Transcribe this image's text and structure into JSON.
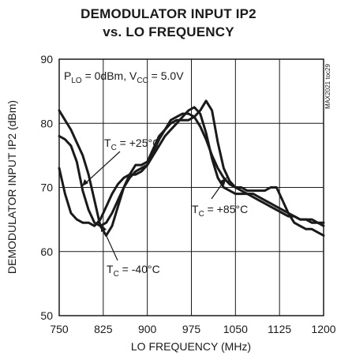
{
  "chart_data": {
    "type": "line",
    "title_line1": "DEMODULATOR INPUT IP2",
    "title_line2": "vs. LO FREQUENCY",
    "xlabel": "LO FREQUENCY (MHz)",
    "ylabel": "DEMODULATOR INPUT IP2 (dBm)",
    "xlim": [
      750,
      1200
    ],
    "ylim": [
      50,
      90
    ],
    "x_ticks": [
      "750",
      "825",
      "900",
      "975",
      "1050",
      "1125",
      "1200"
    ],
    "y_ticks": [
      "50",
      "60",
      "70",
      "80",
      "90"
    ],
    "grid": true,
    "conditions": {
      "P": "P",
      "P_sub": "LO",
      "P_val": " = 0dBm, V",
      "V_sub": "CC",
      "V_val": " = 5.0V"
    },
    "side_note": "MAX2021 toc29",
    "annotations": [
      {
        "base": "T",
        "sub": "C",
        "value": " = +25°C"
      },
      {
        "base": "T",
        "sub": "C",
        "value": " = -40°C"
      },
      {
        "base": "T",
        "sub": "C",
        "value": " = +85°C"
      }
    ],
    "series": [
      {
        "key": "t25",
        "x": [
          750,
          760,
          770,
          780,
          790,
          800,
          810,
          820,
          830,
          840,
          850,
          860,
          870,
          880,
          890,
          900,
          910,
          920,
          930,
          940,
          950,
          960,
          970,
          980,
          990,
          1000,
          1010,
          1020,
          1030,
          1040,
          1050,
          1060,
          1070,
          1080,
          1090,
          1100,
          1110,
          1120,
          1130,
          1140,
          1150,
          1160,
          1170,
          1180,
          1190,
          1200
        ],
        "y": [
          78.0,
          77.5,
          76.5,
          74.0,
          69.5,
          66.5,
          64.5,
          64.0,
          64.5,
          66.0,
          68.0,
          70.0,
          71.5,
          72.5,
          73.0,
          73.5,
          75.0,
          76.5,
          78.0,
          79.0,
          80.0,
          81.0,
          82.0,
          82.5,
          81.5,
          78.5,
          74.5,
          71.5,
          70.0,
          69.5,
          69.0,
          69.0,
          69.0,
          69.0,
          68.5,
          68.0,
          67.5,
          67.0,
          66.5,
          66.0,
          65.5,
          65.0,
          65.0,
          64.5,
          64.5,
          64.0
        ]
      },
      {
        "key": "tm40",
        "x": [
          750,
          760,
          770,
          780,
          790,
          800,
          810,
          820,
          830,
          840,
          850,
          860,
          870,
          880,
          890,
          900,
          910,
          920,
          930,
          940,
          950,
          960,
          970,
          980,
          990,
          1000,
          1010,
          1020,
          1030,
          1040,
          1050,
          1060,
          1070,
          1080,
          1090,
          1100,
          1110,
          1120,
          1130,
          1140,
          1150,
          1160,
          1170,
          1180,
          1190,
          1200
        ],
        "y": [
          82.0,
          80.5,
          79.0,
          77.0,
          75.0,
          72.0,
          68.0,
          64.0,
          62.5,
          64.0,
          67.0,
          70.0,
          72.0,
          73.5,
          73.5,
          74.0,
          76.0,
          78.0,
          79.0,
          80.0,
          80.5,
          80.5,
          80.5,
          81.0,
          82.0,
          83.5,
          82.0,
          77.0,
          73.0,
          71.0,
          70.0,
          70.0,
          69.5,
          69.5,
          69.5,
          69.5,
          70.0,
          70.0,
          68.0,
          66.0,
          64.5,
          64.0,
          63.5,
          63.5,
          63.0,
          62.5
        ]
      },
      {
        "key": "t85",
        "x": [
          750,
          760,
          770,
          780,
          790,
          800,
          810,
          820,
          830,
          840,
          850,
          860,
          870,
          880,
          890,
          900,
          910,
          920,
          930,
          940,
          950,
          960,
          970,
          980,
          990,
          1000,
          1010,
          1020,
          1030,
          1040,
          1050,
          1060,
          1070,
          1080,
          1090,
          1100,
          1110,
          1120,
          1130,
          1140,
          1150,
          1160,
          1170,
          1180,
          1190,
          1200
        ],
        "y": [
          73.0,
          69.0,
          66.0,
          65.0,
          64.5,
          64.5,
          64.0,
          65.0,
          67.0,
          69.0,
          70.5,
          71.5,
          72.0,
          72.0,
          72.5,
          73.5,
          75.5,
          77.5,
          79.0,
          80.5,
          81.0,
          81.5,
          81.5,
          81.0,
          79.5,
          77.5,
          75.0,
          73.0,
          71.5,
          70.5,
          70.0,
          69.5,
          69.0,
          68.5,
          68.0,
          67.5,
          67.0,
          66.5,
          66.0,
          65.5,
          65.5,
          65.0,
          65.0,
          65.0,
          64.5,
          64.5
        ]
      }
    ]
  }
}
